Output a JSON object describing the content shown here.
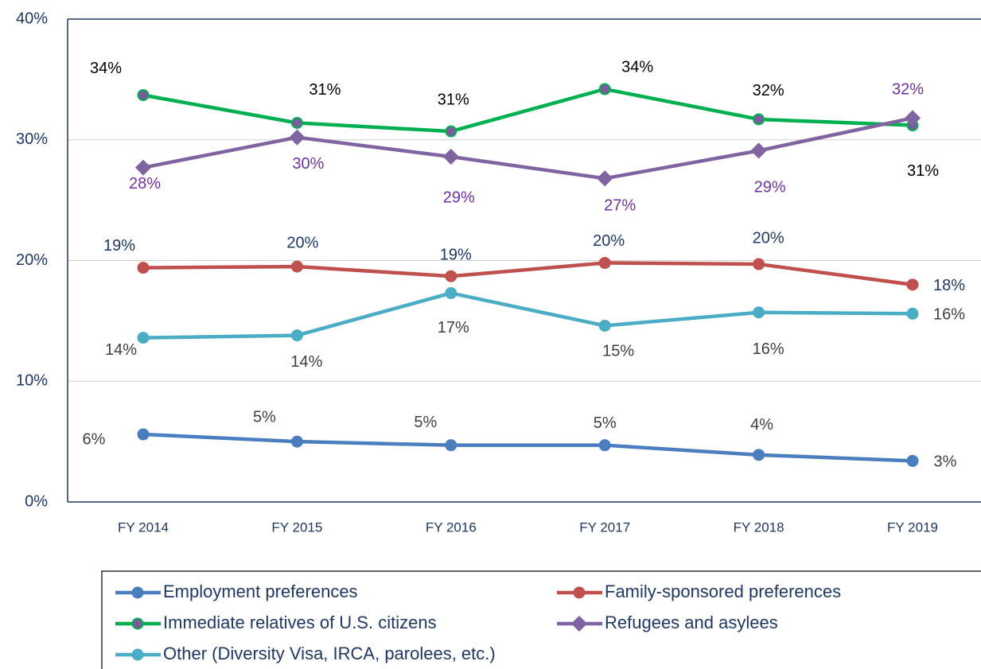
{
  "chart_data": {
    "type": "line",
    "categories": [
      "FY 2014",
      "FY 2015",
      "FY 2016",
      "FY 2017",
      "FY 2018",
      "FY 2019"
    ],
    "ylim": [
      0,
      40
    ],
    "yticks": [
      {
        "value": 0,
        "label": "0%"
      },
      {
        "value": 10,
        "label": "10%"
      },
      {
        "value": 20,
        "label": "20%"
      },
      {
        "value": 30,
        "label": "30%"
      },
      {
        "value": 40,
        "label": "40%"
      }
    ],
    "grid": true,
    "series": [
      {
        "name": "Employment preferences",
        "color": "#4a7ebf",
        "marker": "circle",
        "marker_color": "#4a7ebf",
        "label_color": "#404040",
        "values": [
          5.6,
          5.0,
          4.7,
          4.7,
          3.9,
          3.4
        ],
        "value_labels": [
          "6%",
          "5%",
          "5%",
          "5%",
          "4%",
          "3%"
        ]
      },
      {
        "name": "Family-sponsored preferences",
        "color": "#c0504d",
        "marker": "circle",
        "marker_color": "#c0504d",
        "label_color": "#1f3864",
        "values": [
          19.4,
          19.5,
          18.7,
          19.8,
          19.7,
          18.0
        ],
        "value_labels": [
          "19%",
          "20%",
          "19%",
          "20%",
          "20%",
          "18%"
        ]
      },
      {
        "name": "Immediate relatives of U.S. citizens",
        "color": "#00b050",
        "marker": "circle",
        "marker_color": "#7b5a9e",
        "label_color": "#000000",
        "values": [
          33.7,
          31.4,
          30.7,
          34.2,
          31.7,
          31.2
        ],
        "value_labels": [
          "34%",
          "31%",
          "31%",
          "34%",
          "32%",
          "31%"
        ]
      },
      {
        "name": "Refugees and asylees",
        "color": "#8064a2",
        "marker": "diamond",
        "marker_color": "#8064a2",
        "label_color": "#7030a0",
        "values": [
          27.7,
          30.2,
          28.6,
          26.8,
          29.1,
          31.8
        ],
        "value_labels": [
          "28%",
          "30%",
          "29%",
          "27%",
          "29%",
          "32%"
        ]
      },
      {
        "name": "Other (Diversity Visa, IRCA, parolees, etc.)",
        "color": "#4bacc6",
        "marker": "circle",
        "marker_color": "#4bacc6",
        "label_color": "#404040",
        "values": [
          13.6,
          13.8,
          17.3,
          14.6,
          15.7,
          15.6
        ],
        "value_labels": [
          "14%",
          "14%",
          "17%",
          "15%",
          "16%",
          "16%"
        ]
      }
    ]
  }
}
